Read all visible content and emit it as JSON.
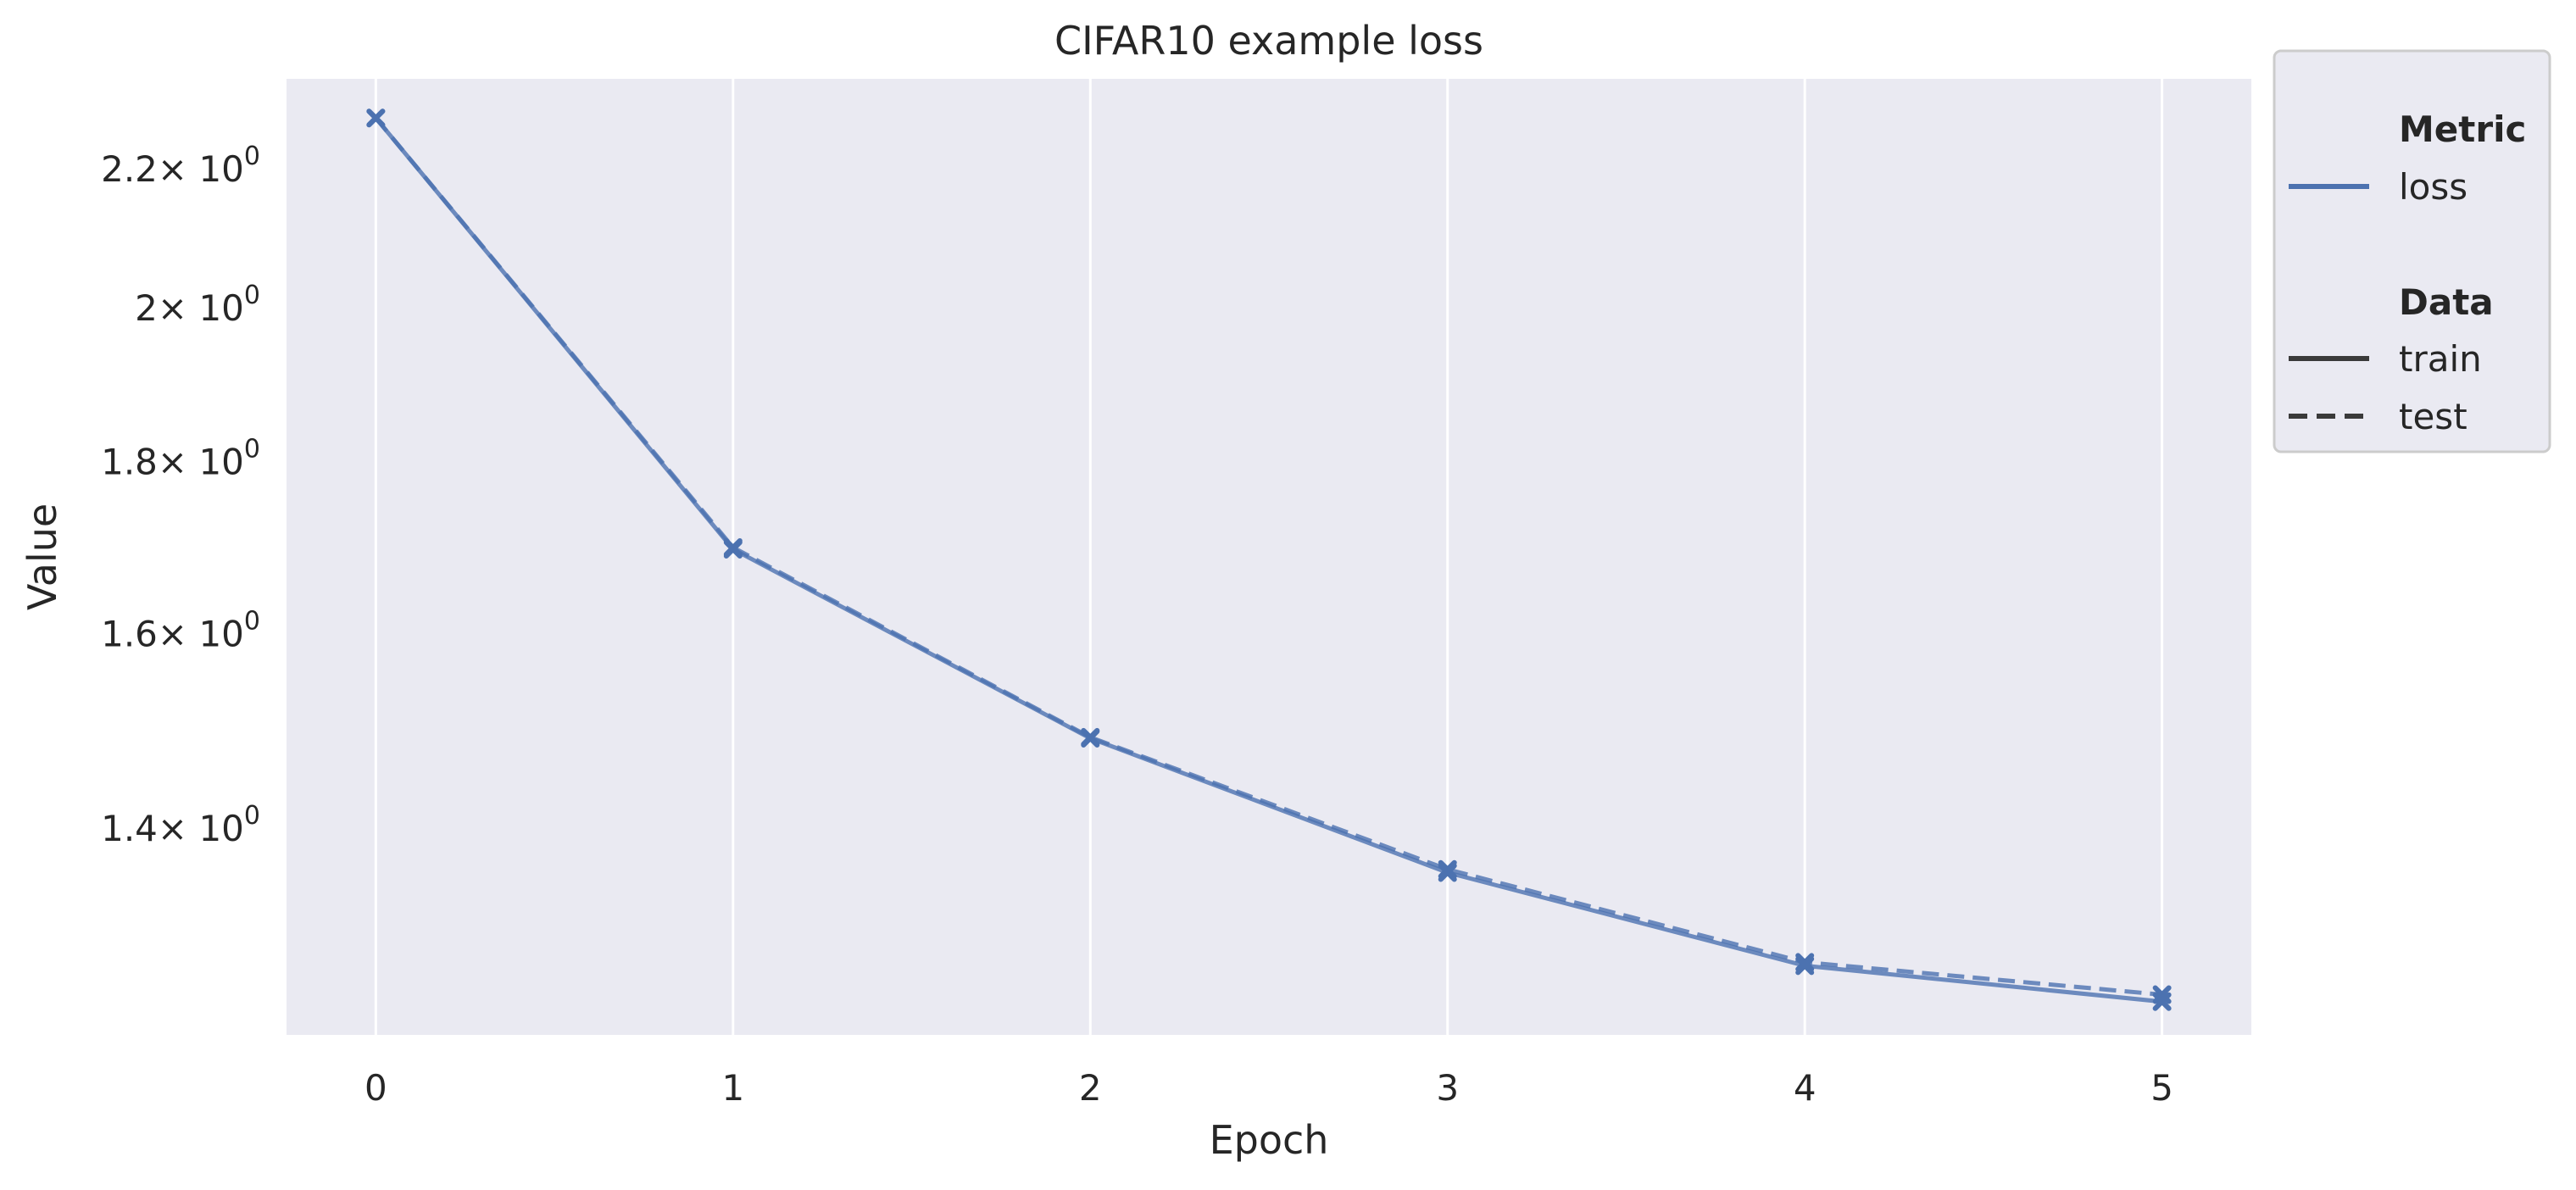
{
  "chart_data": {
    "type": "line",
    "title": "CIFAR10 example loss",
    "xlabel": "Epoch",
    "ylabel": "Value",
    "x": [
      0,
      1,
      2,
      3,
      4,
      5
    ],
    "xlim": [
      -0.25,
      5.25
    ],
    "ylim": [
      1.215,
      2.34
    ],
    "yscale": "log",
    "grid": true,
    "yticks": [
      {
        "value": 1.4,
        "mantissa": "1.4"
      },
      {
        "value": 1.6,
        "mantissa": "1.6"
      },
      {
        "value": 1.8,
        "mantissa": "1.8"
      },
      {
        "value": 2.0,
        "mantissa": "2"
      },
      {
        "value": 2.2,
        "mantissa": "2.2"
      }
    ],
    "ytick_base": "× 10",
    "ytick_exponent": "0",
    "series": [
      {
        "metric": "loss",
        "data": "train",
        "style": "solid",
        "values": [
          2.278,
          1.695,
          1.489,
          1.358,
          1.274,
          1.243
        ]
      },
      {
        "metric": "loss",
        "data": "test",
        "style": "dashed",
        "values": [
          2.278,
          1.697,
          1.49,
          1.361,
          1.277,
          1.249
        ]
      }
    ],
    "legend": {
      "placement": "outside-right",
      "groups": [
        {
          "heading": "Metric",
          "entries": [
            {
              "label": "loss",
              "style": "solid",
              "color": "#4c72b0"
            }
          ]
        },
        {
          "heading": "Data",
          "entries": [
            {
              "label": "train",
              "style": "solid",
              "color": "#3a3a3a"
            },
            {
              "label": "test",
              "style": "dashed",
              "color": "#3a3a3a"
            }
          ]
        }
      ]
    },
    "colors": {
      "line": "#4c72b0",
      "plot_background": "#eaeaf2",
      "grid": "#ffffff"
    }
  }
}
